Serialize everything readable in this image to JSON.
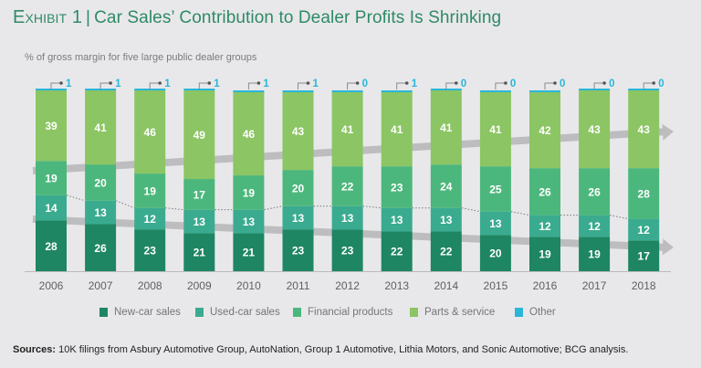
{
  "title": {
    "exhibit": "Exhibit 1",
    "separator": "|",
    "text": "Car Sales’ Contribution to Dealer Profits Is Shrinking"
  },
  "subtitle": "% of gross margin for five large public dealer groups",
  "chart_data": {
    "type": "bar",
    "stacked": true,
    "title": "Car Sales’ Contribution to Dealer Profits Is Shrinking",
    "subtitle": "% of gross margin for five large public dealer groups",
    "xlabel": "",
    "ylabel": "% of gross margin",
    "ylim": [
      0,
      100
    ],
    "grid": false,
    "categories": [
      "2006",
      "2007",
      "2008",
      "2009",
      "2010",
      "2011",
      "2012",
      "2013",
      "2014",
      "2015",
      "2016",
      "2017",
      "2018"
    ],
    "series": [
      {
        "name": "New-car sales",
        "color": "#1e8662",
        "values": [
          28,
          26,
          23,
          21,
          21,
          23,
          23,
          22,
          22,
          20,
          19,
          19,
          17
        ]
      },
      {
        "name": "Used-car sales",
        "color": "#3aab8f",
        "values": [
          14,
          13,
          12,
          13,
          13,
          13,
          13,
          13,
          13,
          13,
          12,
          12,
          12
        ]
      },
      {
        "name": "Financial products",
        "color": "#4cb77c",
        "values": [
          19,
          20,
          19,
          17,
          19,
          20,
          22,
          23,
          24,
          25,
          26,
          26,
          28
        ]
      },
      {
        "name": "Parts & service",
        "color": "#8cc563",
        "values": [
          39,
          41,
          46,
          49,
          46,
          43,
          41,
          41,
          41,
          41,
          42,
          43,
          43
        ]
      },
      {
        "name": "Other",
        "color": "#29b6d9",
        "values": [
          1,
          1,
          1,
          1,
          1,
          1,
          0,
          1,
          0,
          0,
          0,
          0,
          0
        ]
      }
    ],
    "annotations": [
      {
        "type": "trend-arrow",
        "description": "Upward gray arrow across Parts & service / Financial products boundary",
        "direction": "up"
      },
      {
        "type": "trend-arrow",
        "description": "Downward gray arrow across New-car / Used-car boundary",
        "direction": "down"
      },
      {
        "type": "dotted-line",
        "description": "Dotted line tracing combined New-car + Used-car sales share"
      }
    ],
    "legend_position": "bottom"
  },
  "legend": [
    {
      "label": "New-car sales",
      "color": "#1e8662"
    },
    {
      "label": "Used-car sales",
      "color": "#3aab8f"
    },
    {
      "label": "Financial products",
      "color": "#4cb77c"
    },
    {
      "label": "Parts & service",
      "color": "#8cc563"
    },
    {
      "label": "Other",
      "color": "#29b6d9"
    }
  ],
  "sources": {
    "label": "Sources:",
    "text": "10K filings from Asbury Automotive Group, AutoNation, Group 1 Automotive, Lithia Motors, and Sonic Automotive; BCG analysis."
  }
}
